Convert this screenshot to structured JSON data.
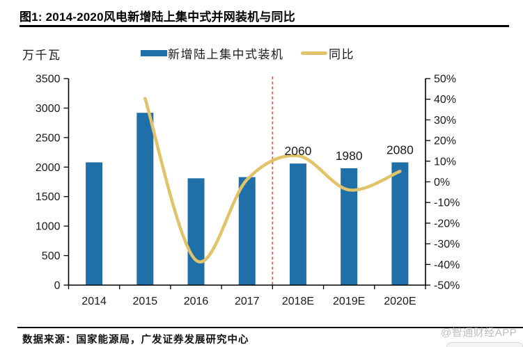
{
  "header": {
    "title": "图1: 2014-2020风电新增陆上集中式并网装机与同比"
  },
  "chart": {
    "unit_label": "万千瓦",
    "legend": {
      "bar_label": "新增陆上集中式装机",
      "line_label": "同比"
    },
    "colors": {
      "bar": "#1F6FA8",
      "line": "#E2C369",
      "divider": "#E8564E",
      "axis": "#000000",
      "text": "#1a1a1a"
    }
  },
  "chart_data": {
    "type": "bar+line",
    "title": "图1: 2014-2020风电新增陆上集中式并网装机与同比",
    "categories": [
      "2014",
      "2015",
      "2016",
      "2017",
      "2018E",
      "2019E",
      "2020E"
    ],
    "series": [
      {
        "name": "新增陆上集中式装机",
        "type": "bar",
        "axis": "left",
        "unit": "万千瓦",
        "color": "#1F6FA8",
        "values": [
          2080,
          2920,
          1810,
          1830,
          2060,
          1980,
          2080
        ],
        "bar_labels": [
          null,
          null,
          null,
          null,
          "2060",
          "1980",
          "2080"
        ]
      },
      {
        "name": "同比",
        "type": "line",
        "axis": "right",
        "unit": "%",
        "color": "#E2C369",
        "values": [
          null,
          40.4,
          -38.0,
          1.1,
          12.6,
          -3.9,
          5.1
        ]
      }
    ],
    "left_axis": {
      "title": "万千瓦",
      "min": 0,
      "max": 3500,
      "step": 500
    },
    "right_axis": {
      "min": -50,
      "max": 50,
      "step": 10,
      "suffix": "%"
    },
    "divider": {
      "after_category": "2017",
      "style": "dashed",
      "color": "#E8564E"
    },
    "grid": false,
    "legend_position": "top"
  },
  "footer": {
    "source": "数据来源：国家能源局，广发证券发展研究中心",
    "watermark": "@智通财经APP"
  }
}
